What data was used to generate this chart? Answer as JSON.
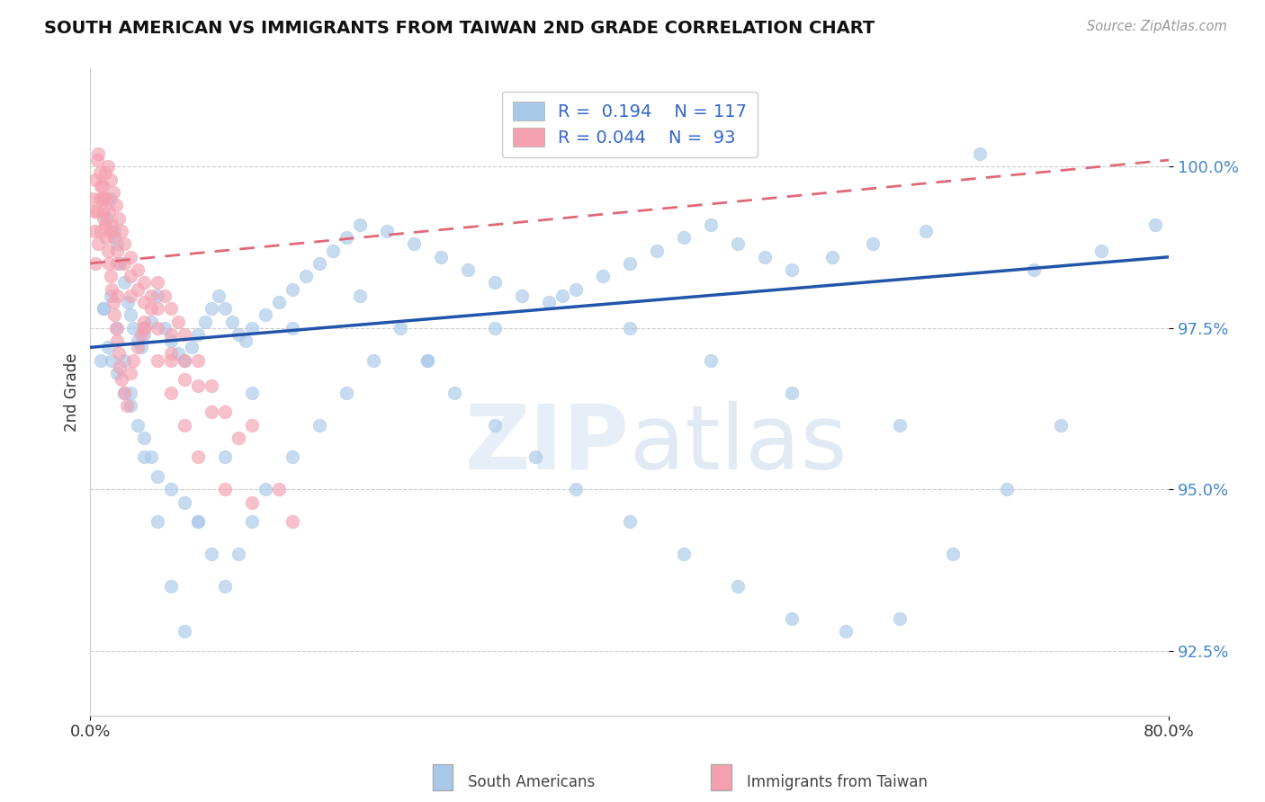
{
  "title": "SOUTH AMERICAN VS IMMIGRANTS FROM TAIWAN 2ND GRADE CORRELATION CHART",
  "source": "Source: ZipAtlas.com",
  "ylabel": "2nd Grade",
  "legend_blue_label": "South Americans",
  "legend_pink_label": "Immigrants from Taiwan",
  "R_blue": 0.194,
  "N_blue": 117,
  "R_pink": 0.044,
  "N_pink": 93,
  "xlim": [
    0.0,
    80.0
  ],
  "ylim": [
    91.5,
    101.5
  ],
  "yticks": [
    92.5,
    95.0,
    97.5,
    100.0
  ],
  "xticks": [
    0.0,
    80.0
  ],
  "xticklabels": [
    "0.0%",
    "80.0%"
  ],
  "yticklabels": [
    "92.5%",
    "95.0%",
    "97.5%",
    "100.0%"
  ],
  "blue_color": "#a8c8e8",
  "pink_color": "#f4a0b0",
  "blue_line_color": "#2255aa",
  "pink_line_color": "#e06878",
  "watermark_zip": "ZIP",
  "watermark_atlas": "atlas",
  "blue_x": [
    1.2,
    1.5,
    1.8,
    2.0,
    2.2,
    2.5,
    2.8,
    3.0,
    3.2,
    3.5,
    3.8,
    4.0,
    4.5,
    5.0,
    5.5,
    6.0,
    6.5,
    7.0,
    7.5,
    8.0,
    8.5,
    9.0,
    9.5,
    10.0,
    10.5,
    11.0,
    11.5,
    12.0,
    13.0,
    14.0,
    15.0,
    16.0,
    17.0,
    18.0,
    19.0,
    20.0,
    22.0,
    24.0,
    26.0,
    28.0,
    30.0,
    32.0,
    34.0,
    36.0,
    38.0,
    40.0,
    42.0,
    44.0,
    46.0,
    48.0,
    50.0,
    52.0,
    55.0,
    58.0,
    62.0,
    66.0,
    70.0,
    75.0,
    79.0,
    1.0,
    1.3,
    1.6,
    2.0,
    2.5,
    3.0,
    3.5,
    4.0,
    4.5,
    5.0,
    6.0,
    7.0,
    8.0,
    9.0,
    10.0,
    11.0,
    12.0,
    13.0,
    15.0,
    17.0,
    19.0,
    21.0,
    23.0,
    25.0,
    27.0,
    30.0,
    33.0,
    36.0,
    40.0,
    44.0,
    48.0,
    52.0,
    56.0,
    60.0,
    64.0,
    68.0,
    72.0,
    0.8,
    1.0,
    1.5,
    2.0,
    2.5,
    3.0,
    4.0,
    5.0,
    6.0,
    7.0,
    8.0,
    10.0,
    12.0,
    15.0,
    20.0,
    25.0,
    30.0,
    35.0,
    40.0,
    46.0,
    52.0,
    60.0
  ],
  "blue_y": [
    99.2,
    99.5,
    99.0,
    98.8,
    98.5,
    98.2,
    97.9,
    97.7,
    97.5,
    97.3,
    97.2,
    97.4,
    97.6,
    98.0,
    97.5,
    97.3,
    97.1,
    97.0,
    97.2,
    97.4,
    97.6,
    97.8,
    98.0,
    97.8,
    97.6,
    97.4,
    97.3,
    97.5,
    97.7,
    97.9,
    98.1,
    98.3,
    98.5,
    98.7,
    98.9,
    99.1,
    99.0,
    98.8,
    98.6,
    98.4,
    98.2,
    98.0,
    97.9,
    98.1,
    98.3,
    98.5,
    98.7,
    98.9,
    99.1,
    98.8,
    98.6,
    98.4,
    98.6,
    98.8,
    99.0,
    100.2,
    98.4,
    98.7,
    99.1,
    97.8,
    97.2,
    97.0,
    96.8,
    96.5,
    96.3,
    96.0,
    95.8,
    95.5,
    95.2,
    95.0,
    94.8,
    94.5,
    94.0,
    93.5,
    94.0,
    94.5,
    95.0,
    95.5,
    96.0,
    96.5,
    97.0,
    97.5,
    97.0,
    96.5,
    96.0,
    95.5,
    95.0,
    94.5,
    94.0,
    93.5,
    93.0,
    92.8,
    93.0,
    94.0,
    95.0,
    96.0,
    97.0,
    97.8,
    98.0,
    97.5,
    97.0,
    96.5,
    95.5,
    94.5,
    93.5,
    92.8,
    94.5,
    95.5,
    96.5,
    97.5,
    98.0,
    97.0,
    97.5,
    98.0,
    97.5,
    97.0,
    96.5,
    96.0
  ],
  "pink_x": [
    0.2,
    0.3,
    0.4,
    0.5,
    0.6,
    0.7,
    0.8,
    0.9,
    1.0,
    1.1,
    1.2,
    1.3,
    1.4,
    1.5,
    1.6,
    1.7,
    1.8,
    1.9,
    2.0,
    2.1,
    2.2,
    2.3,
    2.5,
    2.7,
    3.0,
    3.2,
    3.5,
    3.8,
    4.0,
    4.5,
    5.0,
    5.5,
    6.0,
    6.5,
    7.0,
    8.0,
    9.0,
    10.0,
    11.0,
    12.0,
    14.0,
    0.3,
    0.5,
    0.7,
    0.9,
    1.1,
    1.3,
    1.5,
    1.7,
    1.9,
    2.1,
    2.3,
    2.5,
    3.0,
    3.5,
    4.0,
    4.5,
    5.0,
    6.0,
    7.0,
    8.0,
    9.0,
    0.4,
    0.6,
    0.8,
    1.0,
    1.2,
    1.4,
    1.6,
    1.8,
    2.0,
    2.5,
    3.0,
    3.5,
    4.0,
    5.0,
    6.0,
    7.0,
    1.0,
    1.5,
    2.0,
    3.0,
    4.0,
    5.0,
    6.0,
    7.0,
    8.0,
    10.0,
    12.0,
    15.0,
    2.0,
    4.0,
    6.0
  ],
  "pink_y": [
    99.5,
    99.3,
    99.8,
    100.1,
    100.2,
    99.9,
    99.7,
    99.5,
    99.3,
    99.1,
    98.9,
    98.7,
    98.5,
    98.3,
    98.1,
    97.9,
    97.7,
    97.5,
    97.3,
    97.1,
    96.9,
    96.7,
    96.5,
    96.3,
    96.8,
    97.0,
    97.2,
    97.4,
    97.6,
    97.8,
    98.2,
    98.0,
    97.8,
    97.6,
    97.4,
    97.0,
    96.6,
    96.2,
    95.8,
    96.0,
    95.0,
    99.0,
    99.3,
    99.5,
    99.7,
    99.9,
    100.0,
    99.8,
    99.6,
    99.4,
    99.2,
    99.0,
    98.8,
    98.6,
    98.4,
    98.2,
    98.0,
    97.8,
    97.4,
    97.0,
    96.6,
    96.2,
    98.5,
    98.8,
    99.0,
    99.2,
    99.5,
    99.3,
    99.1,
    98.9,
    98.7,
    98.5,
    98.3,
    98.1,
    97.9,
    97.5,
    97.1,
    96.7,
    99.5,
    99.0,
    98.5,
    98.0,
    97.5,
    97.0,
    96.5,
    96.0,
    95.5,
    95.0,
    94.8,
    94.5,
    98.0,
    97.5,
    97.0
  ],
  "blue_trend_x0": 0.0,
  "blue_trend_x1": 80.0,
  "blue_trend_y0": 97.2,
  "blue_trend_y1": 98.6,
  "pink_trend_x0": 0.0,
  "pink_trend_x1": 80.0,
  "pink_trend_y0": 98.5,
  "pink_trend_y1": 100.1
}
